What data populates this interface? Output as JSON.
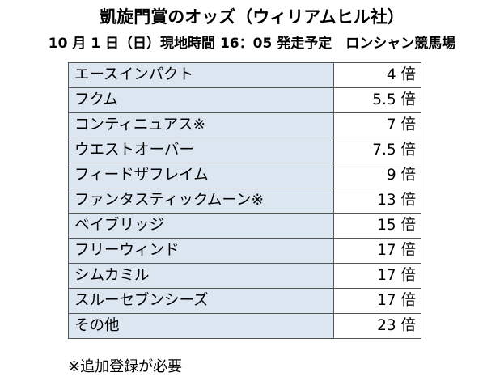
{
  "title": "凱旋門賞のオッズ（ウィリアムヒル社）",
  "subtitle": "10 月 1 日（日）現地時間 16：05 発走予定　ロンシャン競馬場",
  "rows": [
    {
      "horse": "エースインパクト",
      "odds": "4 倍"
    },
    {
      "horse": "フクム",
      "odds": "5.5 倍"
    },
    {
      "horse": "コンティニュアス※",
      "odds": "7 倍"
    },
    {
      "horse": "ウエストオーバー",
      "odds": "7.5 倍"
    },
    {
      "horse": "フィードザフレイム",
      "odds": "9 倍"
    },
    {
      "horse": "ファンタスティックムーン※",
      "odds": "13 倍"
    },
    {
      "horse": "ベイブリッジ",
      "odds": "15 倍"
    },
    {
      "horse": "フリーウィンド",
      "odds": "17 倍"
    },
    {
      "horse": "シムカミル",
      "odds": "17 倍"
    },
    {
      "horse": "スルーセブンシーズ",
      "odds": "17 倍"
    },
    {
      "horse": "その他",
      "odds": "23 倍"
    }
  ],
  "footnote": "※追加登録が必要",
  "colors": {
    "name_cell_bg": "#dce6f1",
    "odds_cell_bg": "#ffffff",
    "border": "#555555"
  }
}
